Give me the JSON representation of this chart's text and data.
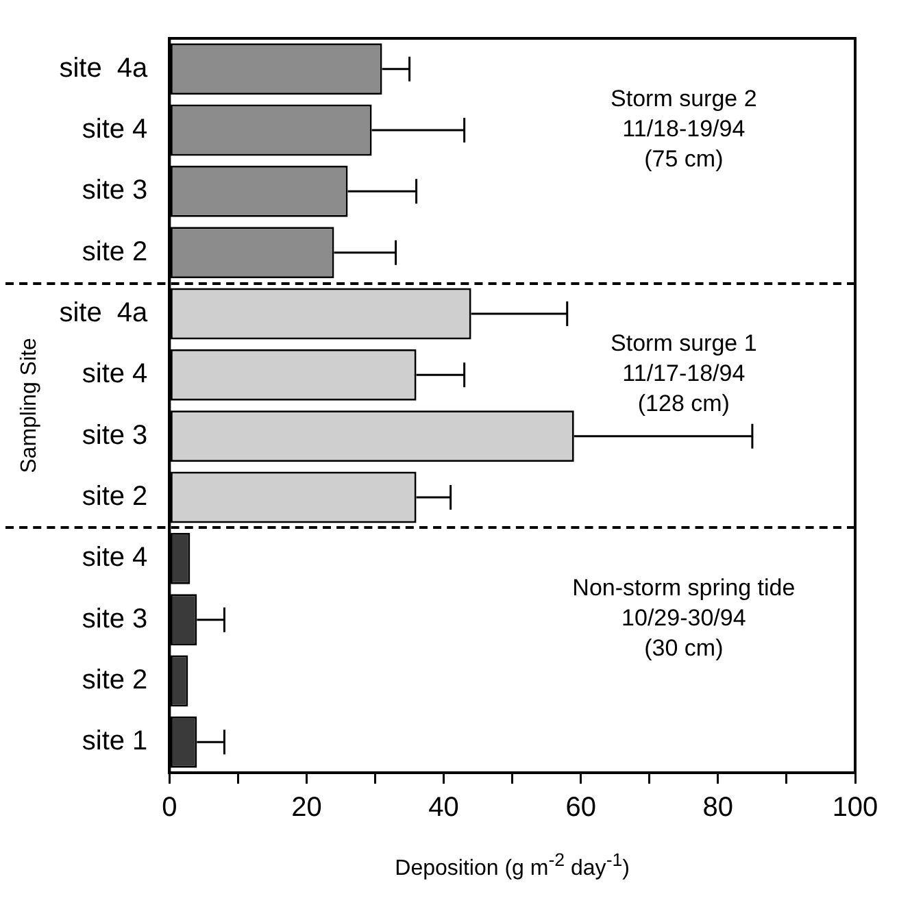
{
  "chart_data": {
    "type": "bar",
    "orientation": "horizontal",
    "xlabel": "Deposition (g m$^{-2}$ day$^{-1}$)",
    "ylabel": "Sampling Site",
    "categories": [
      "site  4a",
      "site 4",
      "site 3",
      "site 2",
      "site  4a",
      "site 4",
      "site 3",
      "site 2",
      "site 4",
      "site 3",
      "site 2",
      "site 1"
    ],
    "values": [
      31,
      29.5,
      26,
      24,
      44,
      36,
      59,
      36,
      3,
      4,
      2.7,
      4
    ],
    "colors": [
      "#8c8c8c",
      "#8c8c8c",
      "#8c8c8c",
      "#8c8c8c",
      "#cfcfcf",
      "#cfcfcf",
      "#cfcfcf",
      "#cfcfcf",
      "#3a3a3a",
      "#3a3a3a",
      "#3a3a3a",
      "#3a3a3a"
    ],
    "errors": [
      [
        31,
        35
      ],
      [
        29.5,
        43
      ],
      [
        26,
        36
      ],
      [
        24,
        33
      ],
      [
        44,
        58
      ],
      [
        36,
        43
      ],
      [
        59,
        85
      ],
      [
        36,
        41
      ],
      null,
      [
        4,
        8
      ],
      null,
      [
        4,
        8
      ]
    ],
    "xlim": [
      0,
      100
    ],
    "xticks": [
      0,
      {
        "value": 10,
        "label": null
      },
      20,
      {
        "value": 30,
        "label": null
      },
      40,
      {
        "value": 50,
        "label": null
      },
      60,
      {
        "value": 70,
        "label": null
      },
      80,
      {
        "value": 90,
        "label": null
      },
      100
    ],
    "annotations": [
      "Storm surge 2\n11/18-19/94\n(75 cm)",
      "Storm surge 1\n11/17-18/94\n(128 cm)",
      "Non-storm spring tide\n10/29-30/94\n(30 cm)"
    ]
  }
}
